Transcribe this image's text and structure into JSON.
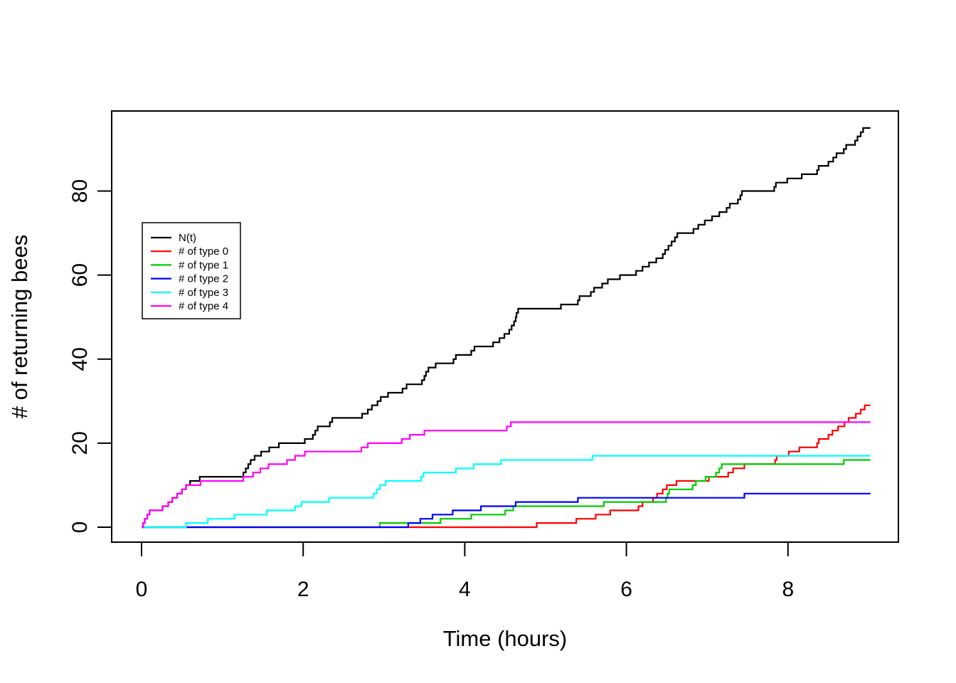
{
  "chart_data": {
    "type": "step-line",
    "title": "",
    "xlabel": "Time (hours)",
    "ylabel": "# of returning bees",
    "xlim": [
      -0.37,
      9.38
    ],
    "ylim": [
      0,
      95
    ],
    "xticks": [
      0,
      2,
      4,
      6,
      8
    ],
    "yticks": [
      0,
      20,
      40,
      60,
      80
    ],
    "grid": false,
    "legend_position": "left-middle",
    "t_start": 0,
    "t_end": 9.02,
    "series": [
      {
        "name": "N(t)",
        "color": "#000000",
        "start_value": 0,
        "jumps": [
          0.02,
          0.04,
          0.07,
          0.1,
          0.26,
          0.33,
          0.38,
          0.44,
          0.5,
          0.55,
          0.6,
          0.72,
          1.26,
          1.29,
          1.32,
          1.35,
          1.4,
          1.48,
          1.58,
          1.7,
          2.02,
          2.12,
          2.15,
          2.18,
          2.33,
          2.36,
          2.73,
          2.8,
          2.85,
          2.92,
          2.96,
          3.05,
          3.23,
          3.28,
          3.47,
          3.5,
          3.52,
          3.55,
          3.64,
          3.86,
          3.89,
          4.08,
          4.12,
          4.35,
          4.43,
          4.49,
          4.55,
          4.58,
          4.61,
          4.63,
          4.64,
          4.66,
          5.19,
          5.4,
          5.42,
          5.56,
          5.6,
          5.7,
          5.77,
          5.92,
          6.12,
          6.2,
          6.28,
          6.37,
          6.45,
          6.48,
          6.52,
          6.56,
          6.6,
          6.63,
          6.83,
          6.89,
          6.97,
          7.06,
          7.15,
          7.24,
          7.28,
          7.38,
          7.41,
          7.43,
          7.83,
          7.85,
          7.99,
          8.17,
          8.36,
          8.38,
          8.5,
          8.56,
          8.6,
          8.69,
          8.72,
          8.83,
          8.86,
          8.9,
          8.93
        ],
        "final_value": 95
      },
      {
        "name": "# of type 0",
        "color": "#FF0000",
        "start_value": 0,
        "jumps": [
          4.89,
          5.38,
          5.62,
          5.8,
          6.15,
          6.2,
          6.33,
          6.38,
          6.45,
          6.5,
          6.62,
          7.02,
          7.26,
          7.32,
          7.46,
          7.84,
          7.86,
          8.01,
          8.14,
          8.36,
          8.38,
          8.5,
          8.55,
          8.62,
          8.7,
          8.75,
          8.84,
          8.9,
          8.95
        ],
        "final_value": 29
      },
      {
        "name": "# of type 1",
        "color": "#00CD00",
        "start_value": 0,
        "jumps": [
          2.95,
          3.7,
          4.08,
          4.5,
          4.6,
          5.72,
          6.49,
          6.51,
          6.53,
          6.82,
          6.86,
          6.98,
          7.11,
          7.15,
          7.18,
          8.69
        ],
        "final_value": 16
      },
      {
        "name": "# of type 2",
        "color": "#0000FF",
        "start_value": 0,
        "jumps": [
          3.3,
          3.45,
          3.6,
          3.85,
          4.2,
          4.63,
          5.4,
          7.46
        ],
        "final_value": 8
      },
      {
        "name": "# of type 3",
        "color": "#00FFFF",
        "start_value": 0,
        "jumps": [
          0.55,
          0.82,
          1.15,
          1.55,
          1.9,
          1.98,
          2.32,
          2.87,
          2.91,
          2.95,
          3.02,
          3.46,
          3.49,
          3.89,
          4.11,
          4.45,
          5.58
        ],
        "final_value": 17
      },
      {
        "name": "# of type 4",
        "color": "#FF00FF",
        "start_value": 0,
        "jumps": [
          0.02,
          0.04,
          0.07,
          0.1,
          0.26,
          0.33,
          0.38,
          0.44,
          0.5,
          0.55,
          0.73,
          1.26,
          1.38,
          1.47,
          1.57,
          1.8,
          1.9,
          2.02,
          2.72,
          2.8,
          3.22,
          3.32,
          3.5,
          4.52,
          4.57
        ],
        "final_value": 25
      }
    ]
  }
}
